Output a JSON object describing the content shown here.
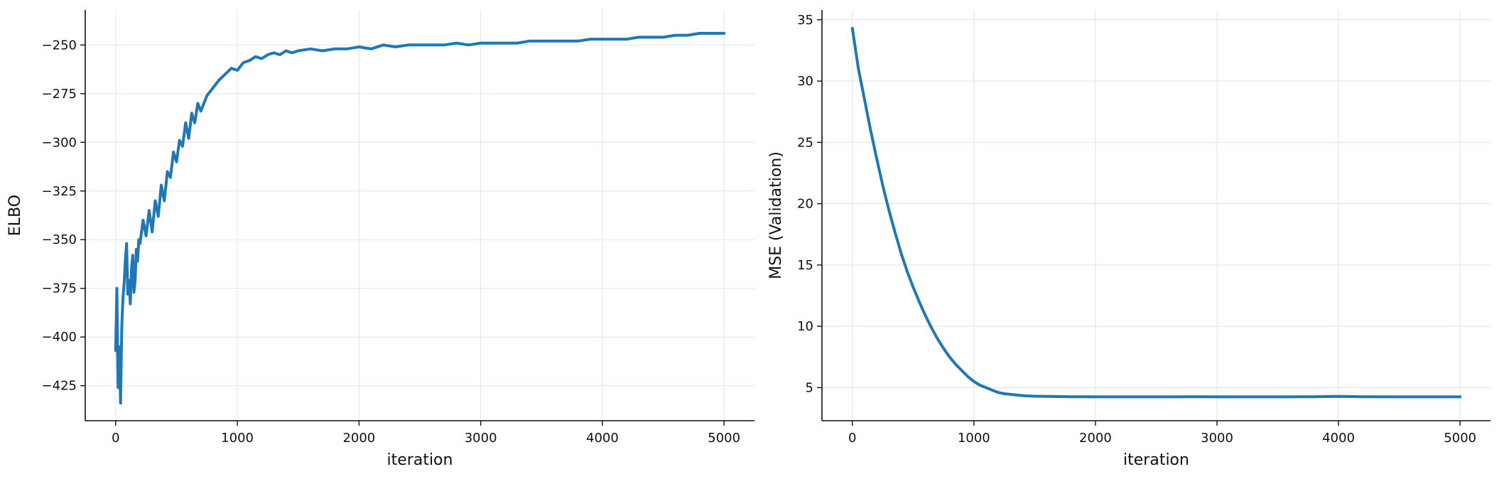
{
  "chart_data": [
    {
      "type": "line",
      "title": "",
      "xlabel": "iteration",
      "ylabel": "ELBO",
      "xlim": [
        -250,
        5250
      ],
      "ylim": [
        -443,
        -232
      ],
      "xticks": [
        0,
        1000,
        2000,
        3000,
        4000,
        5000
      ],
      "yticks": [
        -425,
        -400,
        -375,
        -350,
        -325,
        -300,
        -275,
        -250
      ],
      "grid": true,
      "color": "#1f77b4",
      "series": [
        {
          "x": [
            0,
            10,
            20,
            30,
            40,
            50,
            60,
            70,
            80,
            90,
            100,
            110,
            120,
            130,
            140,
            150,
            160,
            170,
            180,
            190,
            200,
            225,
            250,
            275,
            300,
            325,
            350,
            375,
            400,
            425,
            450,
            475,
            500,
            525,
            550,
            575,
            600,
            625,
            650,
            675,
            700,
            750,
            800,
            850,
            900,
            950,
            1000,
            1050,
            1100,
            1150,
            1200,
            1250,
            1300,
            1350,
            1400,
            1450,
            1500,
            1600,
            1700,
            1800,
            1900,
            2000,
            2100,
            2200,
            2300,
            2400,
            2500,
            2600,
            2700,
            2800,
            2900,
            3000,
            3100,
            3200,
            3300,
            3400,
            3500,
            3600,
            3700,
            3800,
            3900,
            4000,
            4100,
            4200,
            4300,
            4400,
            4500,
            4600,
            4700,
            4800,
            4900,
            5000
          ],
          "values": [
            -407,
            -375,
            -426,
            -405,
            -434,
            -395,
            -380,
            -372,
            -360,
            -352,
            -378,
            -371,
            -383,
            -365,
            -358,
            -377,
            -371,
            -355,
            -361,
            -350,
            -352,
            -340,
            -348,
            -335,
            -346,
            -330,
            -338,
            -322,
            -330,
            -315,
            -318,
            -305,
            -310,
            -299,
            -302,
            -290,
            -298,
            -285,
            -290,
            -280,
            -284,
            -276,
            -272,
            -268,
            -265,
            -262,
            -263,
            -259,
            -258,
            -256,
            -257,
            -255,
            -254,
            -255,
            -253,
            -254,
            -253,
            -252,
            -253,
            -252,
            -252,
            -251,
            -252,
            -250,
            -251,
            -250,
            -250,
            -250,
            -250,
            -249,
            -250,
            -249,
            -249,
            -249,
            -249,
            -248,
            -248,
            -248,
            -248,
            -248,
            -247,
            -247,
            -247,
            -247,
            -246,
            -246,
            -246,
            -245,
            -245,
            -244,
            -244,
            -244
          ]
        }
      ]
    },
    {
      "type": "line",
      "title": "",
      "xlabel": "iteration",
      "ylabel": "MSE (Validation)",
      "xlim": [
        -250,
        5250
      ],
      "ylim": [
        2.3,
        35.8
      ],
      "xticks": [
        0,
        1000,
        2000,
        3000,
        4000,
        5000
      ],
      "yticks": [
        5,
        10,
        15,
        20,
        25,
        30,
        35
      ],
      "grid": true,
      "color": "#1f77b4",
      "series": [
        {
          "x": [
            0,
            50,
            100,
            150,
            200,
            250,
            300,
            350,
            400,
            450,
            500,
            550,
            600,
            650,
            700,
            750,
            800,
            850,
            900,
            950,
            1000,
            1050,
            1100,
            1150,
            1200,
            1250,
            1300,
            1350,
            1400,
            1450,
            1500,
            1600,
            1700,
            1800,
            1900,
            2000,
            2200,
            2400,
            2600,
            2800,
            3000,
            3200,
            3400,
            3600,
            3800,
            4000,
            4200,
            4400,
            4600,
            4800,
            5000
          ],
          "values": [
            34.3,
            31.0,
            28.5,
            26.0,
            23.7,
            21.5,
            19.5,
            17.7,
            16.0,
            14.5,
            13.2,
            12.0,
            10.9,
            9.9,
            9.0,
            8.2,
            7.5,
            6.9,
            6.4,
            5.9,
            5.5,
            5.2,
            5.0,
            4.8,
            4.6,
            4.5,
            4.45,
            4.4,
            4.35,
            4.32,
            4.3,
            4.28,
            4.27,
            4.26,
            4.26,
            4.25,
            4.25,
            4.25,
            4.25,
            4.26,
            4.25,
            4.25,
            4.25,
            4.25,
            4.26,
            4.28,
            4.26,
            4.25,
            4.25,
            4.25,
            4.25
          ]
        }
      ]
    }
  ]
}
